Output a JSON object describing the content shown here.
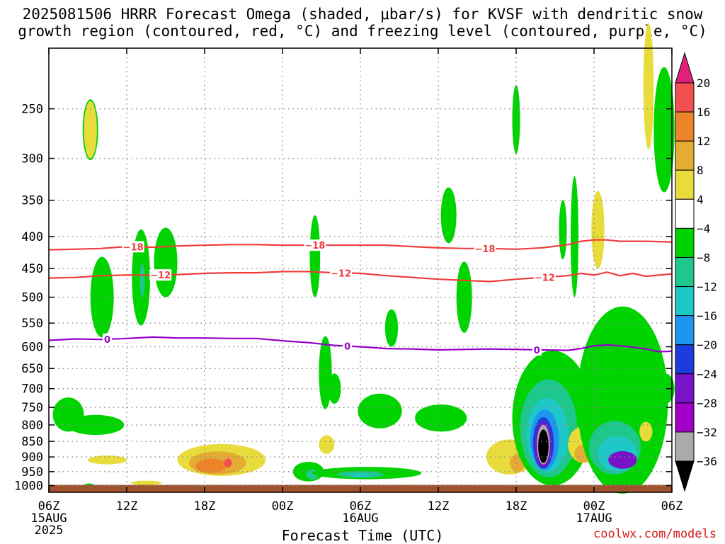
{
  "title": {
    "line1": "2025081506 HRRR Forecast Omega (shaded, μbar/s) for KVSF with dendritic snow",
    "line2": "growth region (contoured, red, °C) and freezing level (contoured, purple, °C)"
  },
  "xlabel": "Forecast Time (UTC)",
  "credit": "coolwx.com/models",
  "colors": {
    "omega_pos_4_8": "#e8dc3c",
    "omega_pos_8_12": "#e4ac32",
    "omega_pos_12_16": "#ee842a",
    "omega_pos_16_20": "#f25050",
    "omega_neg_4_8": "#00d400",
    "omega_neg_8_12": "#1ec88c",
    "omega_neg_12_16": "#1ec8c8",
    "omega_neg_16_20": "#1e96f0",
    "omega_neg_20_24": "#1e3cdc",
    "omega_neg_24_28": "#7814c8",
    "omega_neg_28_32": "#a000c8",
    "omega_neg_32_36": "#aaaaaa",
    "omega_neg_lt36": "#000000",
    "dgz_contour": "#f03c3c",
    "freezing_contour": "#9600c8",
    "terrain": "#a0522d"
  },
  "chart_data": {
    "type": "heatmap",
    "x_tick_labels": [
      "06Z",
      "12Z",
      "18Z",
      "00Z",
      "06Z",
      "12Z",
      "18Z",
      "00Z",
      "06Z"
    ],
    "x_date_labels": [
      {
        "under": "06Z",
        "lines": [
          "15AUG",
          "2025"
        ]
      },
      {
        "under": "00Z",
        "lines": [
          "16AUG"
        ]
      },
      {
        "under": "00Z",
        "lines": [
          "17AUG"
        ]
      }
    ],
    "x_range_hours": [
      0,
      48
    ],
    "y_axis": "pressure (hPa)",
    "y_ticks": [
      250,
      300,
      350,
      400,
      450,
      500,
      550,
      600,
      650,
      700,
      750,
      800,
      850,
      900,
      950,
      1000
    ],
    "ylim": [
      200,
      1025
    ],
    "grid": true,
    "colorbar": {
      "ticks": [
        20,
        16,
        12,
        8,
        4,
        -4,
        -8,
        -12,
        -16,
        -20,
        -24,
        -28,
        -32,
        -36
      ],
      "levels": [
        {
          "range": [
            20,
            24
          ],
          "color": "#e0207a"
        },
        {
          "range": [
            16,
            20
          ],
          "color": "#f25050"
        },
        {
          "range": [
            12,
            16
          ],
          "color": "#ee842a"
        },
        {
          "range": [
            8,
            12
          ],
          "color": "#e4ac32"
        },
        {
          "range": [
            4,
            8
          ],
          "color": "#e8dc3c"
        },
        {
          "range": [
            -4,
            4
          ],
          "color": "#ffffff"
        },
        {
          "range": [
            -8,
            -4
          ],
          "color": "#00d400"
        },
        {
          "range": [
            -12,
            -8
          ],
          "color": "#1ec88c"
        },
        {
          "range": [
            -16,
            -12
          ],
          "color": "#1ec8c8"
        },
        {
          "range": [
            -20,
            -16
          ],
          "color": "#1e96f0"
        },
        {
          "range": [
            -24,
            -20
          ],
          "color": "#1e3cdc"
        },
        {
          "range": [
            -28,
            -24
          ],
          "color": "#7814c8"
        },
        {
          "range": [
            -32,
            -28
          ],
          "color": "#a000c8"
        },
        {
          "range": [
            -36,
            -32
          ],
          "color": "#aaaaaa"
        },
        {
          "range": [
            -40,
            -36
          ],
          "color": "#000000"
        }
      ]
    },
    "contours": [
      {
        "name": "-18",
        "kind": "dendritic",
        "label": "−18",
        "label_at_hours": [
          6.5,
          20.5,
          33.6
        ],
        "points": [
          [
            0,
            420
          ],
          [
            2,
            419
          ],
          [
            4,
            418
          ],
          [
            6,
            415
          ],
          [
            8,
            416
          ],
          [
            10,
            414
          ],
          [
            12,
            413
          ],
          [
            14,
            412
          ],
          [
            16,
            412
          ],
          [
            18,
            413
          ],
          [
            20,
            413
          ],
          [
            22,
            413
          ],
          [
            24,
            413
          ],
          [
            26,
            413
          ],
          [
            28,
            415
          ],
          [
            30,
            417
          ],
          [
            32,
            418
          ],
          [
            34,
            418
          ],
          [
            36,
            419
          ],
          [
            38,
            417
          ],
          [
            40,
            412
          ],
          [
            41,
            407
          ],
          [
            42,
            405
          ],
          [
            43,
            405
          ],
          [
            44,
            407
          ],
          [
            46,
            407
          ],
          [
            48,
            408
          ]
        ]
      },
      {
        "name": "-12",
        "kind": "dendritic",
        "label": "−12",
        "label_at_hours": [
          8.6,
          22.5,
          38.2
        ],
        "points": [
          [
            0,
            466
          ],
          [
            2,
            465
          ],
          [
            4,
            462
          ],
          [
            6,
            461
          ],
          [
            8,
            461
          ],
          [
            10,
            460
          ],
          [
            12,
            458
          ],
          [
            14,
            457
          ],
          [
            16,
            457
          ],
          [
            18,
            455
          ],
          [
            20,
            455
          ],
          [
            22,
            457
          ],
          [
            24,
            458
          ],
          [
            26,
            462
          ],
          [
            28,
            465
          ],
          [
            30,
            468
          ],
          [
            32,
            470
          ],
          [
            34,
            472
          ],
          [
            36,
            468
          ],
          [
            38,
            465
          ],
          [
            40,
            462
          ],
          [
            41,
            458
          ],
          [
            42,
            461
          ],
          [
            43,
            456
          ],
          [
            44,
            462
          ],
          [
            45,
            458
          ],
          [
            46,
            463
          ],
          [
            47,
            461
          ],
          [
            48,
            459
          ]
        ]
      },
      {
        "name": "0",
        "kind": "freezing",
        "label": "0",
        "label_at_hours": [
          4.5,
          23.0,
          37.6
        ],
        "points": [
          [
            0,
            586
          ],
          [
            2,
            583
          ],
          [
            4,
            584
          ],
          [
            6,
            582
          ],
          [
            8,
            579
          ],
          [
            10,
            581
          ],
          [
            12,
            581
          ],
          [
            14,
            582
          ],
          [
            16,
            582
          ],
          [
            18,
            587
          ],
          [
            20,
            591
          ],
          [
            22,
            597
          ],
          [
            24,
            600
          ],
          [
            26,
            604
          ],
          [
            28,
            605
          ],
          [
            30,
            607
          ],
          [
            32,
            606
          ],
          [
            34,
            605
          ],
          [
            36,
            606
          ],
          [
            38,
            607
          ],
          [
            40,
            608
          ],
          [
            41,
            604
          ],
          [
            42,
            598
          ],
          [
            43,
            596
          ],
          [
            44,
            598
          ],
          [
            45,
            601
          ],
          [
            46,
            605
          ],
          [
            47,
            611
          ],
          [
            48,
            610
          ]
        ]
      }
    ],
    "regions": [
      {
        "level": -6,
        "t": 3.2,
        "p": 270,
        "dt": 0.6,
        "dp": 32
      },
      {
        "level": 6,
        "t": 3.2,
        "p": 270,
        "dt": 0.5,
        "dp": 30
      },
      {
        "level": -6,
        "t": 4.1,
        "p": 500,
        "dt": 0.9,
        "dp": 80
      },
      {
        "level": -6,
        "t": 7.1,
        "p": 465,
        "dt": 0.7,
        "dp": 90
      },
      {
        "level": -10,
        "t": 7.2,
        "p": 470,
        "dt": 0.2,
        "dp": 30
      },
      {
        "level": -6,
        "t": 9.0,
        "p": 440,
        "dt": 0.9,
        "dp": 60
      },
      {
        "level": -6,
        "t": 1.5,
        "p": 770,
        "dt": 1.2,
        "dp": 50
      },
      {
        "level": -6,
        "t": 3.6,
        "p": 800,
        "dt": 2.2,
        "dp": 30
      },
      {
        "level": 6,
        "t": 4.5,
        "p": 910,
        "dt": 1.5,
        "dp": 15
      },
      {
        "level": -6,
        "t": 3.1,
        "p": 1000,
        "dt": 0.4,
        "dp": 8
      },
      {
        "level": 6,
        "t": 7.5,
        "p": 990,
        "dt": 1.2,
        "dp": 8
      },
      {
        "level": 6,
        "t": 13.3,
        "p": 910,
        "dt": 3.4,
        "dp": 55
      },
      {
        "level": 10,
        "t": 13.0,
        "p": 920,
        "dt": 2.2,
        "dp": 40
      },
      {
        "level": 14,
        "t": 12.5,
        "p": 930,
        "dt": 1.2,
        "dp": 25
      },
      {
        "level": 18,
        "t": 13.8,
        "p": 920,
        "dt": 0.3,
        "dp": 15
      },
      {
        "level": -6,
        "t": 20.5,
        "p": 430,
        "dt": 0.4,
        "dp": 70
      },
      {
        "level": -6,
        "t": 21.3,
        "p": 660,
        "dt": 0.5,
        "dp": 95
      },
      {
        "level": -6,
        "t": 22.0,
        "p": 700,
        "dt": 0.5,
        "dp": 40
      },
      {
        "level": 6,
        "t": 21.4,
        "p": 860,
        "dt": 0.6,
        "dp": 30
      },
      {
        "level": -6,
        "t": 20.0,
        "p": 950,
        "dt": 1.2,
        "dp": 35
      },
      {
        "level": -10,
        "t": 20.3,
        "p": 960,
        "dt": 0.5,
        "dp": 18
      },
      {
        "level": -6,
        "t": 24.5,
        "p": 955,
        "dt": 4.2,
        "dp": 22
      },
      {
        "level": -10,
        "t": 24.0,
        "p": 960,
        "dt": 1.8,
        "dp": 12
      },
      {
        "level": -14,
        "t": 24.0,
        "p": 962,
        "dt": 0.8,
        "dp": 6
      },
      {
        "level": -6,
        "t": 26.4,
        "p": 560,
        "dt": 0.5,
        "dp": 40
      },
      {
        "level": -6,
        "t": 25.5,
        "p": 760,
        "dt": 1.7,
        "dp": 50
      },
      {
        "level": -6,
        "t": 30.2,
        "p": 780,
        "dt": 2.0,
        "dp": 40
      },
      {
        "level": -6,
        "t": 30.8,
        "p": 370,
        "dt": 0.6,
        "dp": 40
      },
      {
        "level": -6,
        "t": 32.0,
        "p": 500,
        "dt": 0.6,
        "dp": 70
      },
      {
        "level": -6,
        "t": 36.0,
        "p": 260,
        "dt": 0.3,
        "dp": 35
      },
      {
        "level": 6,
        "t": 35.5,
        "p": 900,
        "dt": 1.8,
        "dp": 60
      },
      {
        "level": 10,
        "t": 36.1,
        "p": 920,
        "dt": 0.6,
        "dp": 30
      },
      {
        "level": -6,
        "t": 38.8,
        "p": 780,
        "dt": 3.1,
        "dp": 220
      },
      {
        "level": -10,
        "t": 38.5,
        "p": 810,
        "dt": 2.2,
        "dp": 160
      },
      {
        "level": -14,
        "t": 38.4,
        "p": 830,
        "dt": 1.6,
        "dp": 120
      },
      {
        "level": -18,
        "t": 38.2,
        "p": 845,
        "dt": 1.1,
        "dp": 100
      },
      {
        "level": -22,
        "t": 38.1,
        "p": 855,
        "dt": 0.8,
        "dp": 85
      },
      {
        "level": -26,
        "t": 38.1,
        "p": 860,
        "dt": 0.65,
        "dp": 75
      },
      {
        "level": -34,
        "t": 38.1,
        "p": 860,
        "dt": 0.5,
        "dp": 65
      },
      {
        "level": -38,
        "t": 38.1,
        "p": 865,
        "dt": 0.4,
        "dp": 55
      },
      {
        "level": -6,
        "t": 40.5,
        "p": 400,
        "dt": 0.3,
        "dp": 100
      },
      {
        "level": -6,
        "t": 39.6,
        "p": 390,
        "dt": 0.3,
        "dp": 45
      },
      {
        "level": 6,
        "t": 42.3,
        "p": 390,
        "dt": 0.5,
        "dp": 60
      },
      {
        "level": 6,
        "t": 41.2,
        "p": 860,
        "dt": 1.2,
        "dp": 60
      },
      {
        "level": 10,
        "t": 41.1,
        "p": 890,
        "dt": 0.6,
        "dp": 30
      },
      {
        "level": -6,
        "t": 44.2,
        "p": 730,
        "dt": 3.5,
        "dp": 300
      },
      {
        "level": -10,
        "t": 43.6,
        "p": 870,
        "dt": 2.0,
        "dp": 90
      },
      {
        "level": -14,
        "t": 43.8,
        "p": 890,
        "dt": 1.5,
        "dp": 60
      },
      {
        "level": -26,
        "t": 44.2,
        "p": 910,
        "dt": 1.1,
        "dp": 30
      },
      {
        "level": -6,
        "t": 47.4,
        "p": 270,
        "dt": 0.8,
        "dp": 70
      },
      {
        "level": 6,
        "t": 46.2,
        "p": 230,
        "dt": 0.4,
        "dp": 60
      },
      {
        "level": -6,
        "t": 47.5,
        "p": 700,
        "dt": 0.7,
        "dp": 40
      },
      {
        "level": 6,
        "t": 46.0,
        "p": 820,
        "dt": 0.5,
        "dp": 30
      }
    ]
  }
}
